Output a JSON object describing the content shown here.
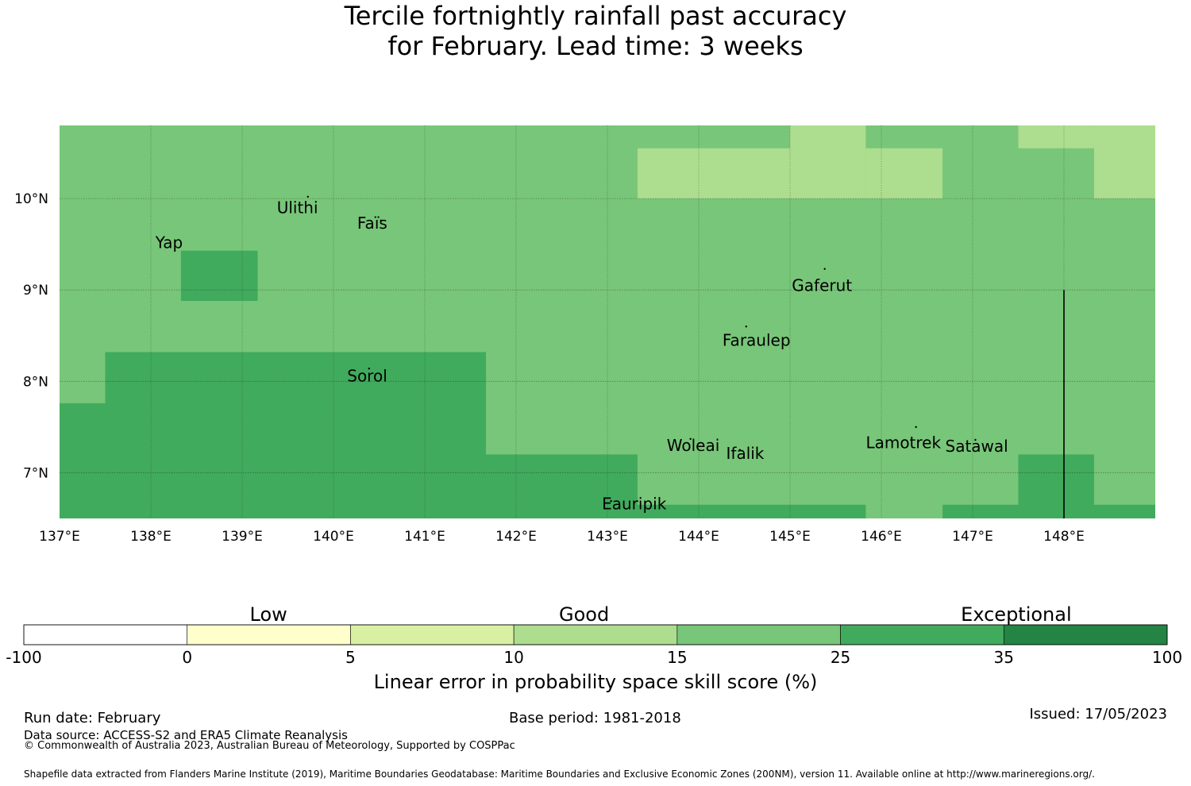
{
  "title": {
    "line1": "Tercile fortnightly rainfall past accuracy",
    "line2": "for February. Lead time: 3 weeks"
  },
  "map": {
    "lon_range": [
      137,
      149
    ],
    "lat_range": [
      6.5,
      10.8
    ],
    "lon_ticks": [
      {
        "value": 137,
        "label": "137°E"
      },
      {
        "value": 138,
        "label": "138°E"
      },
      {
        "value": 139,
        "label": "139°E"
      },
      {
        "value": 140,
        "label": "140°E"
      },
      {
        "value": 141,
        "label": "141°E"
      },
      {
        "value": 142,
        "label": "142°E"
      },
      {
        "value": 143,
        "label": "143°E"
      },
      {
        "value": 144,
        "label": "144°E"
      },
      {
        "value": 145,
        "label": "145°E"
      },
      {
        "value": 146,
        "label": "146°E"
      },
      {
        "value": 147,
        "label": "147°E"
      },
      {
        "value": 148,
        "label": "148°E"
      }
    ],
    "lat_ticks": [
      {
        "value": 10,
        "label": "10°N"
      },
      {
        "value": 9,
        "label": "9°N"
      },
      {
        "value": 8,
        "label": "8°N"
      },
      {
        "value": 7,
        "label": "7°N"
      }
    ],
    "background_color": "#78c679",
    "skill_cells": [
      {
        "lon": [
          143.33,
          145.0
        ],
        "lat": [
          10.0,
          10.55
        ],
        "color": "#addd8e"
      },
      {
        "lon": [
          145.0,
          145.83
        ],
        "lat": [
          10.0,
          10.8
        ],
        "color": "#addd8e"
      },
      {
        "lon": [
          145.83,
          146.67
        ],
        "lat": [
          10.0,
          10.55
        ],
        "color": "#addd8e"
      },
      {
        "lon": [
          147.5,
          148.33
        ],
        "lat": [
          10.55,
          10.8
        ],
        "color": "#addd8e"
      },
      {
        "lon": [
          148.33,
          149.0
        ],
        "lat": [
          10.0,
          10.8
        ],
        "color": "#addd8e"
      },
      {
        "lon": [
          138.33,
          139.17
        ],
        "lat": [
          8.88,
          9.43
        ],
        "color": "#41ab5d"
      },
      {
        "lon": [
          137.5,
          141.67
        ],
        "lat": [
          7.2,
          8.32
        ],
        "color": "#41ab5d"
      },
      {
        "lon": [
          137.0,
          141.67
        ],
        "lat": [
          6.5,
          7.76
        ],
        "color": "#41ab5d"
      },
      {
        "lon": [
          141.67,
          143.33
        ],
        "lat": [
          6.5,
          7.2
        ],
        "color": "#41ab5d"
      },
      {
        "lon": [
          143.33,
          145.83
        ],
        "lat": [
          6.5,
          6.65
        ],
        "color": "#41ab5d"
      },
      {
        "lon": [
          146.67,
          147.5
        ],
        "lat": [
          6.5,
          6.65
        ],
        "color": "#41ab5d"
      },
      {
        "lon": [
          147.5,
          148.33
        ],
        "lat": [
          6.5,
          7.2
        ],
        "color": "#41ab5d"
      },
      {
        "lon": [
          148.33,
          149.0
        ],
        "lat": [
          6.5,
          6.65
        ],
        "color": "#41ab5d"
      }
    ],
    "boundary_line": {
      "lon": 148.0,
      "lat": [
        6.5,
        9.0
      ]
    },
    "places": [
      {
        "name": "Ulithi",
        "lon": 139.72,
        "lat": 10.02
      },
      {
        "name": "Fais",
        "lon": 140.52,
        "lat": 9.76
      },
      {
        "name": "Yap",
        "lon": 138.12,
        "lat": 9.55
      },
      {
        "name": "Gaferut",
        "lon": 145.38,
        "lat": 9.23
      },
      {
        "name": "Faraulep",
        "lon": 144.52,
        "lat": 8.6
      },
      {
        "name": "Sorol",
        "lon": 140.39,
        "lat": 8.14
      },
      {
        "name": "Woleai",
        "lon": 143.91,
        "lat": 7.37
      },
      {
        "name": "Ifalik",
        "lon": 144.45,
        "lat": 7.25
      },
      {
        "name": "Lamotrek",
        "lon": 146.38,
        "lat": 7.5
      },
      {
        "name": "Satawal",
        "lon": 147.03,
        "lat": 7.36
      },
      {
        "name": "Eauripik",
        "lon": 143.04,
        "lat": 6.69
      }
    ],
    "place_labels": [
      {
        "text": "Ulithi",
        "lon": 139.38,
        "lat": 9.84
      },
      {
        "text": "Faïs",
        "lon": 140.26,
        "lat": 9.67
      },
      {
        "text": "Yap",
        "lon": 138.05,
        "lat": 9.46
      },
      {
        "text": "Gaferut",
        "lon": 145.02,
        "lat": 8.99
      },
      {
        "text": "Faraulep",
        "lon": 144.26,
        "lat": 8.39
      },
      {
        "text": "Sorol",
        "lon": 140.15,
        "lat": 8.0
      },
      {
        "text": "Woleai",
        "lon": 143.65,
        "lat": 7.24
      },
      {
        "text": "Ifalik",
        "lon": 144.3,
        "lat": 7.15
      },
      {
        "text": "Lamotrek",
        "lon": 145.83,
        "lat": 7.27
      },
      {
        "text": "Satawal",
        "lon": 146.7,
        "lat": 7.23
      },
      {
        "text": "Eauripik",
        "lon": 142.94,
        "lat": 6.6
      }
    ]
  },
  "colorbar": {
    "categories": [
      {
        "text": "Low",
        "position": 0.214
      },
      {
        "text": "Good",
        "position": 0.49
      },
      {
        "text": "Exceptional",
        "position": 0.868
      }
    ],
    "bins": [
      {
        "from": -100,
        "to": 0,
        "color": "#ffffff"
      },
      {
        "from": 0,
        "to": 5,
        "color": "#ffffcc"
      },
      {
        "from": 5,
        "to": 10,
        "color": "#d9f0a3"
      },
      {
        "from": 10,
        "to": 15,
        "color": "#addd8e"
      },
      {
        "from": 15,
        "to": 25,
        "color": "#78c679"
      },
      {
        "from": 25,
        "to": 35,
        "color": "#41ab5d"
      },
      {
        "from": 35,
        "to": 100,
        "color": "#238443"
      }
    ],
    "ticks": [
      "-100",
      "0",
      "5",
      "10",
      "15",
      "25",
      "35",
      "100"
    ],
    "title": "Linear error in probability space skill score (%)"
  },
  "footer": {
    "run_date": "Run date: February",
    "data_source": "Data source: ACCESS-S2 and ERA5 Climate Reanalysis",
    "copyright": "© Commonwealth of Australia 2023, Australian Bureau of Meteorology, Supported by COSPPac",
    "base_period": "Base period: 1981-2018",
    "issued": "Issued: 17/05/2023",
    "shapefile": "Shapefile data extracted from Flanders Marine Institute (2019), Maritime Boundaries Geodatabase: Maritime Boundaries and Exclusive Economic Zones (200NM), version 11. Available online at http://www.marineregions.org/."
  }
}
